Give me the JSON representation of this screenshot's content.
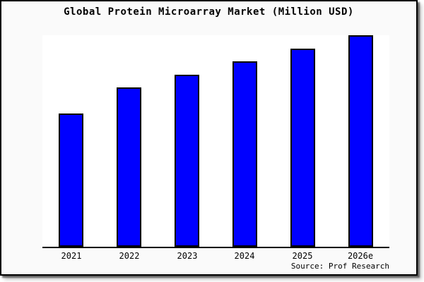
{
  "chart_data": {
    "type": "bar",
    "title": "Global Protein Microarray Market (Million USD)",
    "categories": [
      "2021",
      "2022",
      "2023",
      "2024",
      "2025",
      "2026e"
    ],
    "values": [
      63,
      75.3,
      81.5,
      87.7,
      93.7,
      100
    ],
    "xlabel": "",
    "ylabel": "",
    "ylim": [
      0,
      100
    ],
    "grid": false,
    "legend": "none",
    "y_axis_shown": false,
    "bar_color": "#0000ff"
  },
  "footer": {
    "source": "Source: Prof Research"
  },
  "colors": {
    "bar": "#0000ff",
    "bar_border": "#000000",
    "background": "#fafafa",
    "plot_background": "#ffffff",
    "text": "#000000"
  }
}
